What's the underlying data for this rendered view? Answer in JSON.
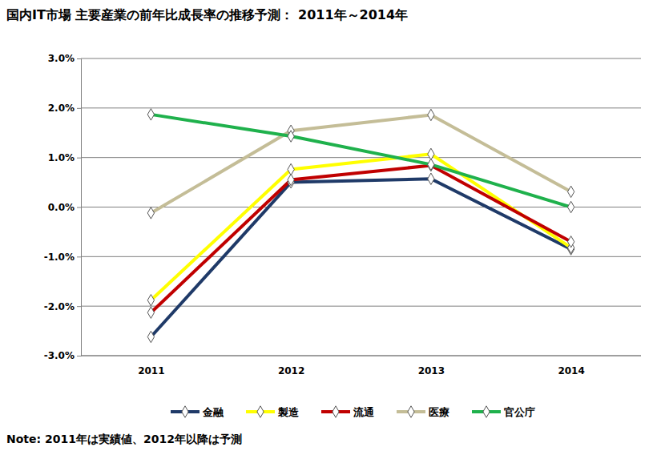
{
  "chart_data": {
    "type": "line",
    "title": "国内IT市場 主要産業の前年比成長率の推移予測： 2011年～2014年",
    "annotations": [
      "Note: 2011年は実績値、2012年以降は予測"
    ],
    "categories": [
      "2011",
      "2012",
      "2013",
      "2014"
    ],
    "series": [
      {
        "name": "金融",
        "color": "#1f3a68",
        "values": [
          -2.62,
          0.5,
          0.57,
          -0.85
        ]
      },
      {
        "name": "製造",
        "color": "#ffff00",
        "values": [
          -1.88,
          0.76,
          1.07,
          -0.82
        ]
      },
      {
        "name": "流通",
        "color": "#c00000",
        "values": [
          -2.13,
          0.55,
          0.84,
          -0.7
        ]
      },
      {
        "name": "医療",
        "color": "#c4bd97",
        "values": [
          -0.12,
          1.54,
          1.86,
          0.31
        ]
      },
      {
        "name": "官公庁",
        "color": "#1fb14c",
        "values": [
          1.87,
          1.43,
          0.86,
          0.0
        ]
      }
    ],
    "ylim": [
      -3,
      3
    ],
    "yticks": [
      {
        "value": -3,
        "label": "-3.0%"
      },
      {
        "value": -2,
        "label": "-2.0%"
      },
      {
        "value": -1,
        "label": "-1.0%"
      },
      {
        "value": 0,
        "label": "0.0%"
      },
      {
        "value": 1,
        "label": "1.0%"
      },
      {
        "value": 2,
        "label": "2.0%"
      },
      {
        "value": 3,
        "label": "3.0%"
      }
    ],
    "grid": true,
    "legend": "bottom",
    "marker": "diamond"
  }
}
